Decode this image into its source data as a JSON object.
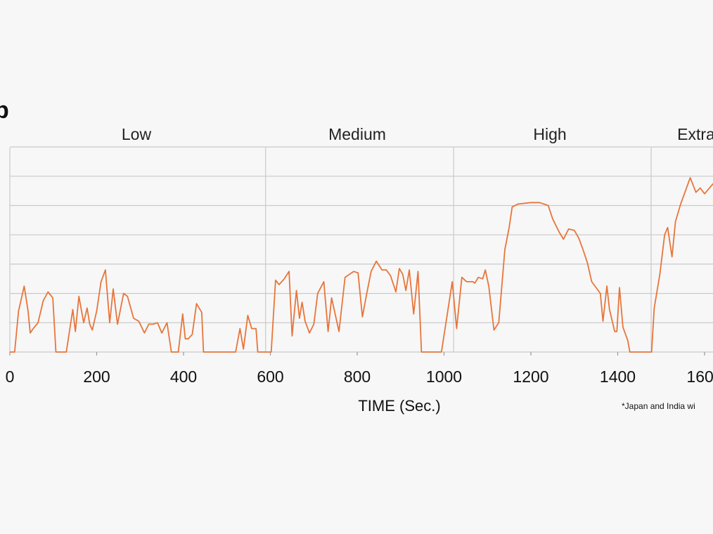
{
  "chart_data": {
    "type": "line",
    "xlabel": "TIME (Sec.)",
    "ylabel": "",
    "phases": [
      {
        "name": "Low",
        "start": 0,
        "end": 589
      },
      {
        "name": "Medium",
        "start": 589,
        "end": 1022
      },
      {
        "name": "High",
        "start": 1022,
        "end": 1477
      },
      {
        "name": "Extra",
        "start": 1477,
        "end": 1800
      }
    ],
    "x_ticks": [
      0,
      200,
      400,
      600,
      800,
      1000,
      1200,
      1400,
      1600
    ],
    "x_tick_labels": [
      "0",
      "200",
      "400",
      "600",
      "800",
      "1000",
      "1200",
      "1400",
      "1600"
    ],
    "xlim": [
      0,
      1625
    ],
    "ylim": [
      0,
      140
    ],
    "y_grid": [
      0,
      20,
      40,
      60,
      80,
      100,
      120,
      140
    ],
    "grid": true,
    "color": "#e8753a",
    "series": [
      {
        "x": [
          0,
          11,
          20,
          33,
          42,
          47,
          54,
          65,
          77,
          88,
          99,
          106,
          115,
          130,
          145,
          151,
          159,
          170,
          178,
          184,
          190,
          200,
          210,
          220,
          230,
          238,
          248,
          262,
          271,
          285,
          297,
          310,
          320,
          330,
          340,
          350,
          362,
          372,
          382,
          388,
          398,
          404,
          411,
          420,
          430,
          442,
          446,
          460,
          520,
          530,
          538,
          548,
          557,
          567,
          571,
          583,
          593,
          602,
          612,
          620,
          632,
          643,
          650,
          660,
          667,
          673,
          680,
          690,
          700,
          709,
          723,
          733,
          741,
          758,
          772,
          782,
          792,
          802,
          812,
          822,
          832,
          844,
          857,
          867,
          877,
          889,
          897,
          905,
          912,
          920,
          930,
          940,
          948,
          958,
          966,
          975,
          994,
          1019,
          1029,
          1041,
          1052,
          1066,
          1071,
          1079,
          1089,
          1095,
          1103,
          1115,
          1126,
          1140,
          1150,
          1157,
          1170,
          1200,
          1220,
          1240,
          1250,
          1265,
          1275,
          1287,
          1300,
          1310,
          1320,
          1330,
          1340,
          1360,
          1366,
          1375,
          1381,
          1393,
          1398,
          1404,
          1412,
          1423,
          1428,
          1449,
          1470,
          1478,
          1484,
          1497,
          1508,
          1515,
          1525,
          1533,
          1545,
          1567,
          1580,
          1590,
          1600,
          1620,
          1630
        ],
        "y": [
          0,
          0,
          28,
          45,
          28,
          13,
          16,
          20,
          35,
          41,
          37,
          0,
          0,
          0,
          29,
          14,
          38,
          20,
          30,
          19,
          15,
          28,
          48,
          56,
          20,
          43,
          19,
          40,
          38,
          23,
          21,
          13,
          19,
          19,
          20,
          13,
          20,
          0,
          0,
          0,
          26,
          9,
          9,
          12,
          33,
          27,
          0,
          0,
          0,
          16,
          2,
          25,
          16,
          16,
          0,
          0,
          0,
          0,
          49,
          46,
          50,
          55,
          11,
          42,
          23,
          34,
          21,
          13,
          19,
          40,
          48,
          14,
          37,
          14,
          51,
          53,
          55,
          54,
          24,
          40,
          55,
          62,
          56,
          56,
          52,
          41,
          57,
          53,
          42,
          56,
          26,
          55,
          0,
          0,
          0,
          0,
          0,
          48,
          16,
          51,
          48,
          48,
          47,
          51,
          50,
          56,
          45,
          15,
          20,
          70,
          85,
          99,
          101,
          102,
          102,
          100,
          91,
          82,
          77,
          84,
          83,
          78,
          70,
          61,
          48,
          40,
          21,
          45,
          29,
          14,
          14,
          44,
          17,
          8,
          0,
          0,
          0,
          0,
          30,
          53,
          80,
          85,
          65,
          89,
          101,
          119,
          109,
          112,
          108,
          115,
          109
        ],
        "truncated": true
      }
    ],
    "footnote": "*Japan and India wi"
  },
  "edge_glyph": "p",
  "colors": {
    "line": "#e8753a",
    "grid": "#c9c9c9",
    "background": "#f7f7f7"
  }
}
